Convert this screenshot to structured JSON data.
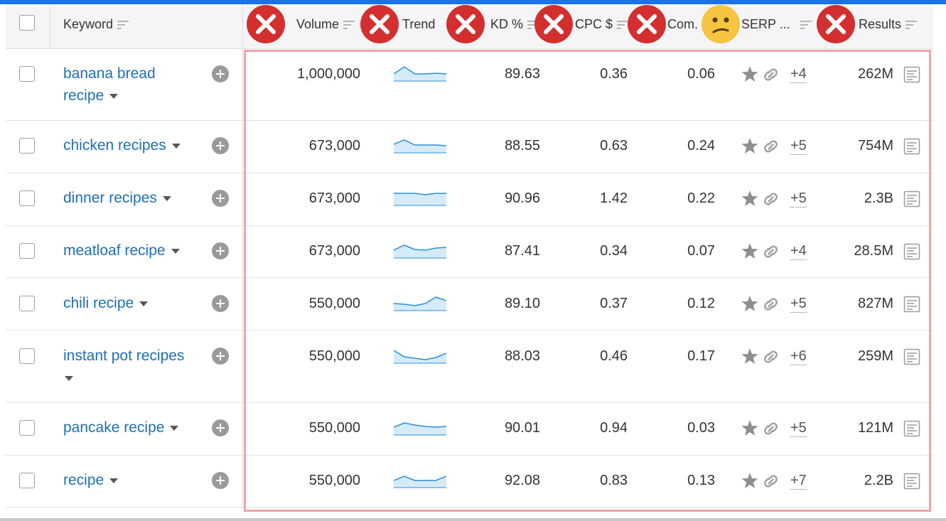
{
  "table": {
    "columns": [
      {
        "key": "keyword",
        "label": "Keyword",
        "badge": ""
      },
      {
        "key": "volume",
        "label": "Volume",
        "badge": "x"
      },
      {
        "key": "trend",
        "label": "Trend",
        "badge": "x"
      },
      {
        "key": "kd",
        "label": "KD %",
        "badge": "x"
      },
      {
        "key": "cpc",
        "label": "CPC $",
        "badge": "x"
      },
      {
        "key": "com",
        "label": "Com.",
        "badge": "x"
      },
      {
        "key": "serp",
        "label": "SERP ...",
        "badge": "confused"
      },
      {
        "key": "results",
        "label": "Results",
        "badge": "x"
      }
    ],
    "rows": [
      {
        "keyword_line1": "banana bread",
        "keyword_line2": "recipe",
        "volume": "1,000,000",
        "trend": [
          12,
          2,
          12,
          12,
          11,
          12
        ],
        "kd": "89.63",
        "cpc": "0.36",
        "com": "0.06",
        "serp_more": "+4",
        "results": "262M"
      },
      {
        "keyword_line1": "chicken recipes",
        "keyword_line2": "",
        "volume": "673,000",
        "trend": [
          10,
          4,
          11,
          11,
          11,
          12
        ],
        "kd": "88.55",
        "cpc": "0.63",
        "com": "0.24",
        "serp_more": "+5",
        "results": "754M"
      },
      {
        "keyword_line1": "dinner recipes",
        "keyword_line2": "",
        "volume": "673,000",
        "trend": [
          5,
          5,
          5,
          7,
          5,
          5
        ],
        "kd": "90.96",
        "cpc": "1.42",
        "com": "0.22",
        "serp_more": "+5",
        "results": "2.3B"
      },
      {
        "keyword_line1": "meatloaf recipe",
        "keyword_line2": "",
        "volume": "673,000",
        "trend": [
          11,
          4,
          10,
          11,
          8,
          7
        ],
        "kd": "87.41",
        "cpc": "0.34",
        "com": "0.07",
        "serp_more": "+4",
        "results": "28.5M"
      },
      {
        "keyword_line1": "chili recipe",
        "keyword_line2": "",
        "volume": "550,000",
        "trend": [
          12,
          13,
          15,
          12,
          3,
          8
        ],
        "kd": "89.10",
        "cpc": "0.37",
        "com": "0.12",
        "serp_more": "+5",
        "results": "827M"
      },
      {
        "keyword_line1": "instant pot recipes",
        "keyword_line2": "",
        "volume": "550,000",
        "trend": [
          4,
          13,
          15,
          17,
          14,
          8
        ],
        "kd": "88.03",
        "cpc": "0.46",
        "com": "0.17",
        "serp_more": "+6",
        "results": "259M"
      },
      {
        "keyword_line1": "pancake recipe",
        "keyword_line2": "",
        "volume": "550,000",
        "trend": [
          11,
          5,
          8,
          10,
          11,
          10
        ],
        "kd": "90.01",
        "cpc": "0.94",
        "com": "0.03",
        "serp_more": "+5",
        "results": "121M"
      },
      {
        "keyword_line1": "recipe",
        "keyword_line2": "",
        "volume": "550,000",
        "trend": [
          12,
          6,
          12,
          12,
          12,
          6
        ],
        "kd": "92.08",
        "cpc": "0.83",
        "com": "0.13",
        "serp_more": "+7",
        "results": "2.2B"
      }
    ]
  },
  "colors": {
    "accent": "#1a73e8",
    "keyword_link": "#1f6fb5",
    "badge_red": "#d32f2f",
    "badge_yellow": "#f5c542",
    "highlight": "#f2a3a8",
    "spark_line": "#2b8fd6",
    "spark_fill": "#d6ebfa"
  },
  "icons": {
    "serp_icons": [
      "star-icon",
      "link-icon"
    ],
    "results_icon": "serp-snapshot-icon",
    "add_icon": "add-circle-icon"
  }
}
